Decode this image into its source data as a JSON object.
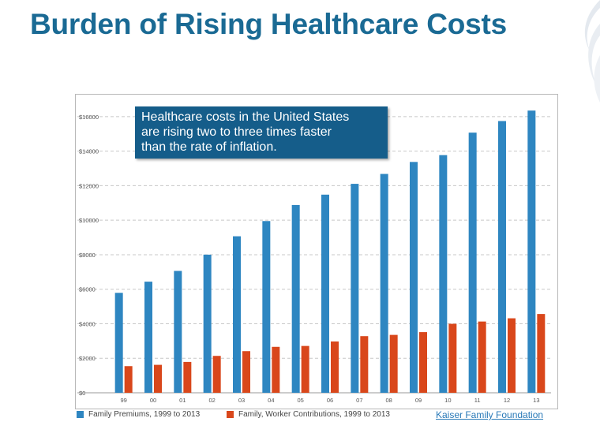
{
  "slide": {
    "title": "Burden of Rising Healthcare Costs"
  },
  "callout": {
    "line1": "Healthcare costs in the United States",
    "line2": "are rising two to three times faster",
    "line3": "than the rate of inflation."
  },
  "source": {
    "label": "Kaiser Family Foundation"
  },
  "colors": {
    "title": "#1a6a94",
    "premiums": "#2e86c1",
    "contributions": "#d9471b",
    "callout_bg": "#155d8a",
    "grid": "#c8c8c8"
  },
  "chart_data": {
    "type": "bar",
    "title": "",
    "xlabel": "",
    "ylabel": "",
    "categories": [
      "99",
      "00",
      "01",
      "02",
      "03",
      "04",
      "05",
      "06",
      "07",
      "08",
      "09",
      "10",
      "11",
      "12",
      "13"
    ],
    "series": [
      {
        "name": "Family Premiums, 1999 to 2013",
        "color": "#2e86c1",
        "values": [
          5791,
          6438,
          7061,
          8003,
          9068,
          9950,
          10880,
          11480,
          12106,
          12680,
          13375,
          13770,
          15073,
          15745,
          16351
        ]
      },
      {
        "name": "Family, Worker Contributions, 1999 to 2013",
        "color": "#d9471b",
        "values": [
          1543,
          1619,
          1787,
          2137,
          2412,
          2661,
          2713,
          2973,
          3281,
          3354,
          3515,
          3997,
          4129,
          4316,
          4565
        ]
      }
    ],
    "ylim": [
      0,
      17000
    ],
    "yticks": [
      0,
      2000,
      4000,
      6000,
      8000,
      10000,
      12000,
      14000,
      16000
    ],
    "ytick_labels": [
      "$0",
      "$2000",
      "$4000",
      "$6000",
      "$8000",
      "$10000",
      "$12000",
      "$14000",
      "$16000"
    ],
    "grid": true,
    "legend_position": "bottom"
  }
}
